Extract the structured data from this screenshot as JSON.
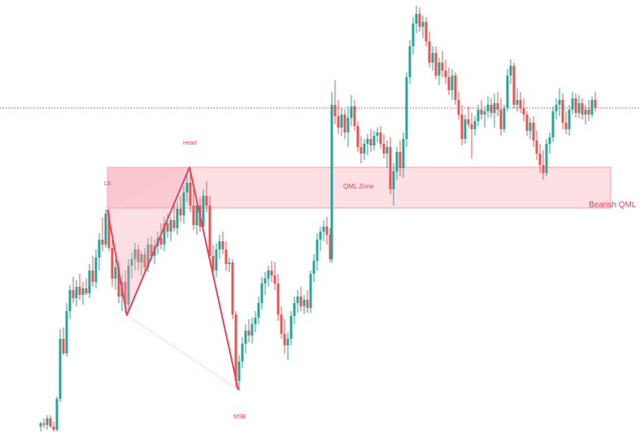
{
  "chart_data": {
    "type": "candlestick",
    "title": "",
    "colors": {
      "bull": "#26a69a",
      "bear": "#ef5350",
      "pattern": "#e8425a",
      "zone_fill": "#fde0e4",
      "zone_border": "#f28b99",
      "current_price_line": "#e8425a"
    },
    "y_range": [
      0,
      533
    ],
    "current_price": 400,
    "zone": {
      "label": "QML Zone",
      "top": 327,
      "bottom": 277,
      "x_start": 132,
      "x_end": 751
    },
    "pattern_label": "Bearish QML",
    "pattern_points": [
      {
        "name": "LS",
        "label": "LS",
        "x": 132,
        "y": 275
      },
      {
        "name": "L1",
        "label": "",
        "x": 156,
        "y": 145
      },
      {
        "name": "Head",
        "label": "Head",
        "x": 233,
        "y": 327
      },
      {
        "name": "MSB",
        "label": "MSB",
        "x": 293,
        "y": 53
      }
    ],
    "candles": [
      {
        "x": 50,
        "o": 8,
        "h": 14,
        "l": 2,
        "c": 12
      },
      {
        "x": 54,
        "o": 12,
        "h": 18,
        "l": 6,
        "c": 10
      },
      {
        "x": 58,
        "o": 10,
        "h": 22,
        "l": 4,
        "c": 18
      },
      {
        "x": 62,
        "o": 18,
        "h": 22,
        "l": 6,
        "c": 8
      },
      {
        "x": 66,
        "o": 8,
        "h": 14,
        "l": 2,
        "c": 4
      },
      {
        "x": 70,
        "o": 4,
        "h": 45,
        "l": 2,
        "c": 42
      },
      {
        "x": 74,
        "o": 42,
        "h": 128,
        "l": 38,
        "c": 116
      },
      {
        "x": 78,
        "o": 116,
        "h": 130,
        "l": 96,
        "c": 98
      },
      {
        "x": 82,
        "o": 98,
        "h": 160,
        "l": 94,
        "c": 150
      },
      {
        "x": 86,
        "o": 150,
        "h": 182,
        "l": 140,
        "c": 176
      },
      {
        "x": 90,
        "o": 176,
        "h": 192,
        "l": 160,
        "c": 166
      },
      {
        "x": 94,
        "o": 166,
        "h": 188,
        "l": 156,
        "c": 180
      },
      {
        "x": 98,
        "o": 180,
        "h": 196,
        "l": 164,
        "c": 170
      },
      {
        "x": 102,
        "o": 170,
        "h": 186,
        "l": 158,
        "c": 178
      },
      {
        "x": 106,
        "o": 178,
        "h": 190,
        "l": 170,
        "c": 172
      },
      {
        "x": 110,
        "o": 172,
        "h": 208,
        "l": 166,
        "c": 200
      },
      {
        "x": 114,
        "o": 200,
        "h": 218,
        "l": 180,
        "c": 186
      },
      {
        "x": 118,
        "o": 186,
        "h": 226,
        "l": 178,
        "c": 216
      },
      {
        "x": 122,
        "o": 216,
        "h": 246,
        "l": 200,
        "c": 238
      },
      {
        "x": 126,
        "o": 238,
        "h": 265,
        "l": 224,
        "c": 232
      },
      {
        "x": 130,
        "o": 232,
        "h": 275,
        "l": 228,
        "c": 270
      },
      {
        "x": 134,
        "o": 270,
        "h": 276,
        "l": 224,
        "c": 228
      },
      {
        "x": 138,
        "o": 228,
        "h": 240,
        "l": 180,
        "c": 190
      },
      {
        "x": 142,
        "o": 190,
        "h": 214,
        "l": 176,
        "c": 204
      },
      {
        "x": 146,
        "o": 204,
        "h": 212,
        "l": 160,
        "c": 168
      },
      {
        "x": 150,
        "o": 168,
        "h": 196,
        "l": 150,
        "c": 186
      },
      {
        "x": 154,
        "o": 186,
        "h": 200,
        "l": 148,
        "c": 158
      },
      {
        "x": 158,
        "o": 158,
        "h": 214,
        "l": 150,
        "c": 206
      },
      {
        "x": 162,
        "o": 206,
        "h": 222,
        "l": 190,
        "c": 214
      },
      {
        "x": 166,
        "o": 214,
        "h": 234,
        "l": 200,
        "c": 226
      },
      {
        "x": 170,
        "o": 226,
        "h": 232,
        "l": 200,
        "c": 210
      },
      {
        "x": 174,
        "o": 210,
        "h": 224,
        "l": 194,
        "c": 220
      },
      {
        "x": 178,
        "o": 220,
        "h": 228,
        "l": 196,
        "c": 204
      },
      {
        "x": 182,
        "o": 204,
        "h": 240,
        "l": 198,
        "c": 232
      },
      {
        "x": 186,
        "o": 232,
        "h": 242,
        "l": 212,
        "c": 218
      },
      {
        "x": 190,
        "o": 218,
        "h": 238,
        "l": 208,
        "c": 230
      },
      {
        "x": 194,
        "o": 230,
        "h": 248,
        "l": 220,
        "c": 240
      },
      {
        "x": 198,
        "o": 240,
        "h": 258,
        "l": 226,
        "c": 232
      },
      {
        "x": 202,
        "o": 232,
        "h": 266,
        "l": 224,
        "c": 258
      },
      {
        "x": 206,
        "o": 258,
        "h": 270,
        "l": 240,
        "c": 248
      },
      {
        "x": 210,
        "o": 248,
        "h": 266,
        "l": 236,
        "c": 262
      },
      {
        "x": 214,
        "o": 262,
        "h": 280,
        "l": 248,
        "c": 252
      },
      {
        "x": 218,
        "o": 252,
        "h": 284,
        "l": 244,
        "c": 276
      },
      {
        "x": 222,
        "o": 276,
        "h": 292,
        "l": 260,
        "c": 268
      },
      {
        "x": 226,
        "o": 268,
        "h": 304,
        "l": 258,
        "c": 296
      },
      {
        "x": 230,
        "o": 296,
        "h": 318,
        "l": 284,
        "c": 308
      },
      {
        "x": 234,
        "o": 308,
        "h": 326,
        "l": 272,
        "c": 280
      },
      {
        "x": 238,
        "o": 280,
        "h": 300,
        "l": 250,
        "c": 256
      },
      {
        "x": 242,
        "o": 256,
        "h": 288,
        "l": 244,
        "c": 280
      },
      {
        "x": 246,
        "o": 280,
        "h": 290,
        "l": 248,
        "c": 254
      },
      {
        "x": 250,
        "o": 254,
        "h": 300,
        "l": 248,
        "c": 292
      },
      {
        "x": 254,
        "o": 292,
        "h": 310,
        "l": 272,
        "c": 280
      },
      {
        "x": 258,
        "o": 280,
        "h": 292,
        "l": 210,
        "c": 218
      },
      {
        "x": 262,
        "o": 218,
        "h": 232,
        "l": 194,
        "c": 200
      },
      {
        "x": 266,
        "o": 200,
        "h": 234,
        "l": 192,
        "c": 226
      },
      {
        "x": 270,
        "o": 226,
        "h": 244,
        "l": 214,
        "c": 236
      },
      {
        "x": 274,
        "o": 236,
        "h": 248,
        "l": 220,
        "c": 226
      },
      {
        "x": 278,
        "o": 226,
        "h": 236,
        "l": 200,
        "c": 208
      },
      {
        "x": 282,
        "o": 208,
        "h": 216,
        "l": 198,
        "c": 210
      },
      {
        "x": 286,
        "o": 210,
        "h": 214,
        "l": 140,
        "c": 146
      },
      {
        "x": 290,
        "o": 146,
        "h": 150,
        "l": 56,
        "c": 64
      },
      {
        "x": 294,
        "o": 64,
        "h": 96,
        "l": 52,
        "c": 88
      },
      {
        "x": 298,
        "o": 88,
        "h": 118,
        "l": 80,
        "c": 110
      },
      {
        "x": 302,
        "o": 110,
        "h": 134,
        "l": 98,
        "c": 126
      },
      {
        "x": 306,
        "o": 126,
        "h": 140,
        "l": 112,
        "c": 120
      },
      {
        "x": 310,
        "o": 120,
        "h": 142,
        "l": 110,
        "c": 134
      },
      {
        "x": 314,
        "o": 134,
        "h": 150,
        "l": 124,
        "c": 142
      },
      {
        "x": 318,
        "o": 142,
        "h": 168,
        "l": 134,
        "c": 160
      },
      {
        "x": 322,
        "o": 160,
        "h": 192,
        "l": 152,
        "c": 184
      },
      {
        "x": 326,
        "o": 184,
        "h": 198,
        "l": 170,
        "c": 190
      },
      {
        "x": 330,
        "o": 190,
        "h": 206,
        "l": 180,
        "c": 200
      },
      {
        "x": 334,
        "o": 200,
        "h": 212,
        "l": 186,
        "c": 194
      },
      {
        "x": 338,
        "o": 194,
        "h": 210,
        "l": 176,
        "c": 184
      },
      {
        "x": 342,
        "o": 184,
        "h": 196,
        "l": 138,
        "c": 146
      },
      {
        "x": 346,
        "o": 146,
        "h": 156,
        "l": 116,
        "c": 122
      },
      {
        "x": 350,
        "o": 122,
        "h": 140,
        "l": 98,
        "c": 108
      },
      {
        "x": 354,
        "o": 108,
        "h": 124,
        "l": 90,
        "c": 116
      },
      {
        "x": 358,
        "o": 116,
        "h": 150,
        "l": 108,
        "c": 144
      },
      {
        "x": 362,
        "o": 144,
        "h": 168,
        "l": 134,
        "c": 160
      },
      {
        "x": 366,
        "o": 160,
        "h": 176,
        "l": 148,
        "c": 168
      },
      {
        "x": 370,
        "o": 168,
        "h": 180,
        "l": 150,
        "c": 156
      },
      {
        "x": 374,
        "o": 156,
        "h": 170,
        "l": 146,
        "c": 164
      },
      {
        "x": 378,
        "o": 164,
        "h": 176,
        "l": 148,
        "c": 154
      },
      {
        "x": 382,
        "o": 154,
        "h": 200,
        "l": 148,
        "c": 196
      },
      {
        "x": 386,
        "o": 196,
        "h": 220,
        "l": 186,
        "c": 212
      },
      {
        "x": 390,
        "o": 212,
        "h": 246,
        "l": 200,
        "c": 238
      },
      {
        "x": 394,
        "o": 238,
        "h": 254,
        "l": 224,
        "c": 248
      },
      {
        "x": 398,
        "o": 248,
        "h": 262,
        "l": 236,
        "c": 254
      },
      {
        "x": 402,
        "o": 254,
        "h": 266,
        "l": 232,
        "c": 244
      },
      {
        "x": 406,
        "o": 244,
        "h": 252,
        "l": 210,
        "c": 214
      },
      {
        "x": 408,
        "o": 214,
        "h": 420,
        "l": 210,
        "c": 404
      },
      {
        "x": 412,
        "o": 404,
        "h": 434,
        "l": 380,
        "c": 390
      },
      {
        "x": 416,
        "o": 390,
        "h": 410,
        "l": 368,
        "c": 376
      },
      {
        "x": 420,
        "o": 376,
        "h": 400,
        "l": 366,
        "c": 392
      },
      {
        "x": 424,
        "o": 392,
        "h": 398,
        "l": 362,
        "c": 370
      },
      {
        "x": 428,
        "o": 370,
        "h": 402,
        "l": 352,
        "c": 388
      },
      {
        "x": 432,
        "o": 388,
        "h": 416,
        "l": 378,
        "c": 402
      },
      {
        "x": 436,
        "o": 402,
        "h": 410,
        "l": 372,
        "c": 378
      },
      {
        "x": 440,
        "o": 378,
        "h": 384,
        "l": 346,
        "c": 352
      },
      {
        "x": 444,
        "o": 352,
        "h": 366,
        "l": 332,
        "c": 344
      },
      {
        "x": 448,
        "o": 344,
        "h": 362,
        "l": 336,
        "c": 356
      },
      {
        "x": 452,
        "o": 356,
        "h": 368,
        "l": 342,
        "c": 362
      },
      {
        "x": 456,
        "o": 362,
        "h": 374,
        "l": 346,
        "c": 354
      },
      {
        "x": 460,
        "o": 354,
        "h": 372,
        "l": 348,
        "c": 366
      },
      {
        "x": 464,
        "o": 366,
        "h": 376,
        "l": 358,
        "c": 370
      },
      {
        "x": 468,
        "o": 370,
        "h": 378,
        "l": 350,
        "c": 356
      },
      {
        "x": 472,
        "o": 356,
        "h": 368,
        "l": 338,
        "c": 344
      },
      {
        "x": 476,
        "o": 344,
        "h": 360,
        "l": 326,
        "c": 352
      },
      {
        "x": 480,
        "o": 352,
        "h": 364,
        "l": 294,
        "c": 300
      },
      {
        "x": 484,
        "o": 300,
        "h": 332,
        "l": 280,
        "c": 322
      },
      {
        "x": 488,
        "o": 322,
        "h": 352,
        "l": 312,
        "c": 346
      },
      {
        "x": 492,
        "o": 346,
        "h": 360,
        "l": 316,
        "c": 326
      },
      {
        "x": 496,
        "o": 326,
        "h": 370,
        "l": 314,
        "c": 362
      },
      {
        "x": 500,
        "o": 362,
        "h": 444,
        "l": 352,
        "c": 438
      },
      {
        "x": 504,
        "o": 438,
        "h": 484,
        "l": 430,
        "c": 476
      },
      {
        "x": 508,
        "o": 476,
        "h": 512,
        "l": 466,
        "c": 504
      },
      {
        "x": 512,
        "o": 504,
        "h": 526,
        "l": 492,
        "c": 516
      },
      {
        "x": 516,
        "o": 516,
        "h": 524,
        "l": 494,
        "c": 500
      },
      {
        "x": 520,
        "o": 500,
        "h": 514,
        "l": 486,
        "c": 506
      },
      {
        "x": 524,
        "o": 506,
        "h": 512,
        "l": 476,
        "c": 482
      },
      {
        "x": 528,
        "o": 482,
        "h": 494,
        "l": 450,
        "c": 456
      },
      {
        "x": 532,
        "o": 456,
        "h": 476,
        "l": 446,
        "c": 468
      },
      {
        "x": 536,
        "o": 468,
        "h": 476,
        "l": 436,
        "c": 440
      },
      {
        "x": 540,
        "o": 440,
        "h": 462,
        "l": 428,
        "c": 456
      },
      {
        "x": 544,
        "o": 456,
        "h": 470,
        "l": 438,
        "c": 446
      },
      {
        "x": 548,
        "o": 446,
        "h": 460,
        "l": 430,
        "c": 438
      },
      {
        "x": 552,
        "o": 438,
        "h": 450,
        "l": 416,
        "c": 422
      },
      {
        "x": 556,
        "o": 422,
        "h": 448,
        "l": 410,
        "c": 440
      },
      {
        "x": 560,
        "o": 440,
        "h": 444,
        "l": 404,
        "c": 410
      },
      {
        "x": 564,
        "o": 410,
        "h": 420,
        "l": 386,
        "c": 392
      },
      {
        "x": 568,
        "o": 392,
        "h": 404,
        "l": 354,
        "c": 362
      },
      {
        "x": 572,
        "o": 362,
        "h": 392,
        "l": 356,
        "c": 386
      },
      {
        "x": 576,
        "o": 386,
        "h": 402,
        "l": 376,
        "c": 380
      },
      {
        "x": 580,
        "o": 380,
        "h": 394,
        "l": 338,
        "c": 374
      },
      {
        "x": 584,
        "o": 374,
        "h": 390,
        "l": 366,
        "c": 384
      },
      {
        "x": 588,
        "o": 384,
        "h": 404,
        "l": 378,
        "c": 398
      },
      {
        "x": 592,
        "o": 398,
        "h": 410,
        "l": 386,
        "c": 392
      },
      {
        "x": 596,
        "o": 392,
        "h": 402,
        "l": 376,
        "c": 396
      },
      {
        "x": 600,
        "o": 396,
        "h": 414,
        "l": 388,
        "c": 404
      },
      {
        "x": 604,
        "o": 404,
        "h": 412,
        "l": 388,
        "c": 394
      },
      {
        "x": 608,
        "o": 394,
        "h": 418,
        "l": 376,
        "c": 406
      },
      {
        "x": 612,
        "o": 406,
        "h": 420,
        "l": 390,
        "c": 398
      },
      {
        "x": 616,
        "o": 398,
        "h": 412,
        "l": 366,
        "c": 374
      },
      {
        "x": 620,
        "o": 374,
        "h": 404,
        "l": 370,
        "c": 400
      },
      {
        "x": 624,
        "o": 400,
        "h": 448,
        "l": 396,
        "c": 440
      },
      {
        "x": 628,
        "o": 440,
        "h": 460,
        "l": 430,
        "c": 452
      },
      {
        "x": 632,
        "o": 452,
        "h": 456,
        "l": 400,
        "c": 404
      },
      {
        "x": 636,
        "o": 404,
        "h": 424,
        "l": 396,
        "c": 410
      },
      {
        "x": 640,
        "o": 410,
        "h": 420,
        "l": 394,
        "c": 400
      },
      {
        "x": 644,
        "o": 400,
        "h": 412,
        "l": 384,
        "c": 392
      },
      {
        "x": 648,
        "o": 392,
        "h": 396,
        "l": 366,
        "c": 372
      },
      {
        "x": 652,
        "o": 372,
        "h": 388,
        "l": 362,
        "c": 382
      },
      {
        "x": 656,
        "o": 382,
        "h": 390,
        "l": 352,
        "c": 360
      },
      {
        "x": 660,
        "o": 360,
        "h": 372,
        "l": 336,
        "c": 344
      },
      {
        "x": 664,
        "o": 344,
        "h": 356,
        "l": 320,
        "c": 330
      },
      {
        "x": 668,
        "o": 330,
        "h": 348,
        "l": 312,
        "c": 320
      },
      {
        "x": 672,
        "o": 320,
        "h": 362,
        "l": 316,
        "c": 356
      },
      {
        "x": 676,
        "o": 356,
        "h": 370,
        "l": 344,
        "c": 364
      },
      {
        "x": 680,
        "o": 364,
        "h": 402,
        "l": 358,
        "c": 396
      },
      {
        "x": 684,
        "o": 396,
        "h": 412,
        "l": 386,
        "c": 404
      },
      {
        "x": 688,
        "o": 404,
        "h": 424,
        "l": 390,
        "c": 410
      },
      {
        "x": 692,
        "o": 410,
        "h": 418,
        "l": 374,
        "c": 382
      },
      {
        "x": 696,
        "o": 382,
        "h": 396,
        "l": 368,
        "c": 374
      },
      {
        "x": 700,
        "o": 374,
        "h": 404,
        "l": 366,
        "c": 398
      },
      {
        "x": 704,
        "o": 398,
        "h": 420,
        "l": 392,
        "c": 412
      },
      {
        "x": 708,
        "o": 412,
        "h": 418,
        "l": 388,
        "c": 394
      },
      {
        "x": 712,
        "o": 394,
        "h": 416,
        "l": 388,
        "c": 406
      },
      {
        "x": 716,
        "o": 406,
        "h": 412,
        "l": 386,
        "c": 392
      },
      {
        "x": 720,
        "o": 392,
        "h": 404,
        "l": 380,
        "c": 398
      },
      {
        "x": 724,
        "o": 398,
        "h": 410,
        "l": 384,
        "c": 392
      },
      {
        "x": 728,
        "o": 392,
        "h": 414,
        "l": 388,
        "c": 410
      },
      {
        "x": 732,
        "o": 410,
        "h": 420,
        "l": 396,
        "c": 400
      }
    ]
  }
}
